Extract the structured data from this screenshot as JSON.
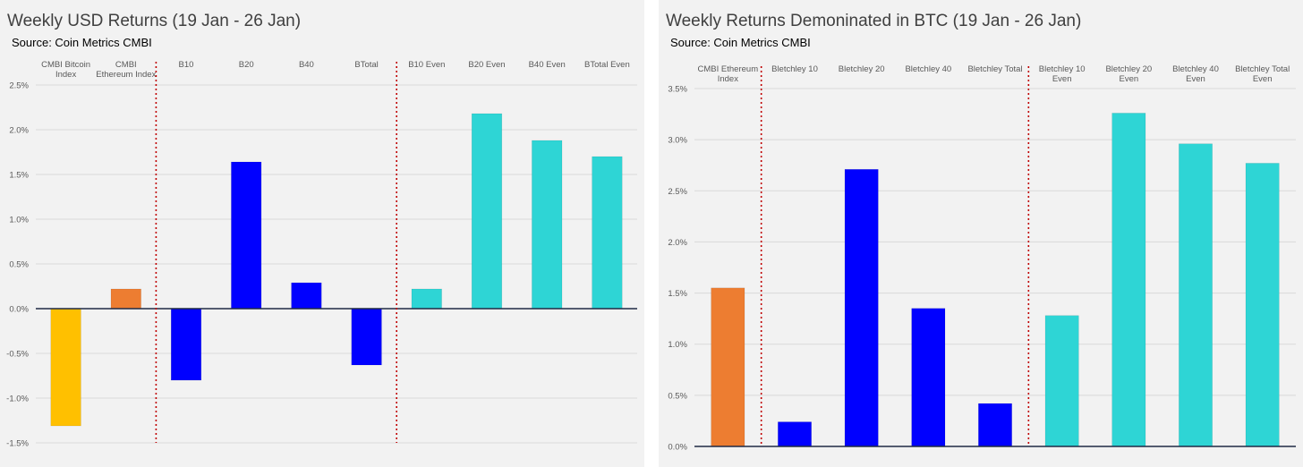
{
  "colors": {
    "panel_bg": "#f2f2f2",
    "gridline": "#d9d9d9",
    "zero_line": "#1f2a44",
    "divider": "#c00000",
    "bitcoin_index": "#ffc000",
    "ethereum_index": "#ed7d31",
    "bletchley": "#0000ff",
    "bletchley_even": "#2ed5d5"
  },
  "chart_data": [
    {
      "type": "bar",
      "title": "Weekly USD Returns (19 Jan - 26 Jan)",
      "subtitle": "Source: Coin Metrics CMBI",
      "categories": [
        [
          "CMBI Bitcoin",
          "Index"
        ],
        [
          "CMBI",
          "Ethereum Index"
        ],
        [
          "B10"
        ],
        [
          "B20"
        ],
        [
          "B40"
        ],
        [
          "BTotal"
        ],
        [
          "B10 Even"
        ],
        [
          "B20 Even"
        ],
        [
          "B40 Even"
        ],
        [
          "BTotal Even"
        ]
      ],
      "values": [
        -1.31,
        0.22,
        -0.8,
        1.64,
        0.29,
        -0.63,
        0.22,
        2.18,
        1.88,
        1.7
      ],
      "bar_colors": [
        "bitcoin_index",
        "ethereum_index",
        "bletchley",
        "bletchley",
        "bletchley",
        "bletchley",
        "bletchley_even",
        "bletchley_even",
        "bletchley_even",
        "bletchley_even"
      ],
      "unit": "%",
      "ylim": [
        -1.5,
        2.5
      ],
      "yticks": [
        2.5,
        2.0,
        1.5,
        1.0,
        0.5,
        0.0,
        -0.5,
        -1.0,
        -1.5
      ],
      "ytick_labels": [
        "2.5%",
        "2.0%",
        "1.5%",
        "1.0%",
        "0.5%",
        "0.0%",
        "-0.5%",
        "-1.0%",
        "-1.5%"
      ],
      "dividers_after_category": [
        1,
        5
      ],
      "grid": true,
      "xlabel": "",
      "ylabel": ""
    },
    {
      "type": "bar",
      "title": "Weekly Returns Demoninated in BTC (19 Jan - 26 Jan)",
      "subtitle": "Source: Coin Metrics CMBI",
      "categories": [
        [
          "CMBI Ethereum",
          "Index"
        ],
        [
          "Bletchley 10"
        ],
        [
          "Bletchley 20"
        ],
        [
          "Bletchley 40"
        ],
        [
          "Bletchley Total"
        ],
        [
          "Bletchley 10",
          "Even"
        ],
        [
          "Bletchley 20",
          "Even"
        ],
        [
          "Bletchley 40",
          "Even"
        ],
        [
          "Bletchley Total",
          "Even"
        ]
      ],
      "values": [
        1.55,
        0.24,
        2.71,
        1.35,
        0.42,
        1.28,
        3.26,
        2.96,
        2.77
      ],
      "bar_colors": [
        "ethereum_index",
        "bletchley",
        "bletchley",
        "bletchley",
        "bletchley",
        "bletchley_even",
        "bletchley_even",
        "bletchley_even",
        "bletchley_even"
      ],
      "unit": "%",
      "ylim": [
        0,
        3.5
      ],
      "yticks": [
        3.5,
        3.0,
        2.5,
        2.0,
        1.5,
        1.0,
        0.5,
        0.0
      ],
      "ytick_labels": [
        "3.5%",
        "3.0%",
        "2.5%",
        "2.0%",
        "1.5%",
        "1.0%",
        "0.5%",
        "0.0%"
      ],
      "dividers_after_category": [
        0,
        4
      ],
      "grid": true,
      "xlabel": "",
      "ylabel": ""
    }
  ]
}
